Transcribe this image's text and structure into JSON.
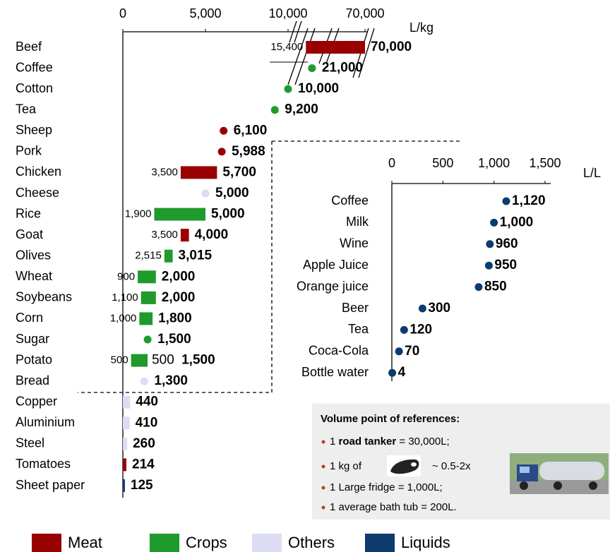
{
  "chart_data": [
    {
      "type": "range",
      "unit": "L/kg",
      "categories": [
        "Beef",
        "Coffee",
        "Cotton",
        "Tea",
        "Sheep",
        "Pork",
        "Chicken",
        "Cheese",
        "Rice",
        "Goat",
        "Olives",
        "Wheat",
        "Soybeans",
        "Corn",
        "Sugar",
        "Potato",
        "Bread",
        "Copper",
        "Aluminium",
        "Steel",
        "Tomatoes",
        "Sheet paper"
      ],
      "values": [
        70000,
        21000,
        10000,
        9200,
        6100,
        5988,
        5700,
        5000,
        5000,
        4000,
        3015,
        2000,
        2000,
        1800,
        1500,
        1500,
        1300,
        440,
        410,
        260,
        214,
        125
      ],
      "value_labels": [
        "70,000",
        "21,000",
        "10,000",
        "9,200",
        "6,100",
        "5,988",
        "5,700",
        "5,000",
        "5,000",
        "4,000",
        "3,015",
        "2,000",
        "2,000",
        "1,800",
        "1,500",
        "1,500",
        "1,300",
        "440",
        "410",
        "260",
        "214",
        "125"
      ],
      "low_values": [
        15400,
        null,
        null,
        null,
        null,
        null,
        3500,
        null,
        1900,
        3500,
        2515,
        900,
        1100,
        1000,
        null,
        500,
        null,
        null,
        null,
        null,
        null,
        null
      ],
      "low_labels": [
        "15,400",
        null,
        null,
        null,
        null,
        null,
        "3,500",
        null,
        "1,900",
        "3,500",
        "2,515",
        "900",
        "1,100",
        "1,000",
        null,
        "500",
        null,
        null,
        null,
        null,
        null,
        null
      ],
      "extra_labels": [
        null,
        null,
        null,
        null,
        null,
        null,
        null,
        null,
        null,
        null,
        null,
        null,
        null,
        null,
        null,
        "500",
        null,
        null,
        null,
        null,
        null,
        null
      ],
      "styles": [
        "bar",
        "dot",
        "dot",
        "dot",
        "dot",
        "dot",
        "bar",
        "dot",
        "bar",
        "bar",
        "bar",
        "bar",
        "bar",
        "bar",
        "dot",
        "bar",
        "dot",
        "bar",
        "bar",
        "bar",
        "bar",
        "bar"
      ],
      "colors": [
        "#990000",
        "#1f9a2c",
        "#1f9a2c",
        "#1f9a2c",
        "#990000",
        "#990000",
        "#990000",
        "#dcdcf4",
        "#1f9a2c",
        "#990000",
        "#1f9a2c",
        "#1f9a2c",
        "#1f9a2c",
        "#1f9a2c",
        "#1f9a2c",
        "#1f9a2c",
        "#dcdcf4",
        "#dcdcf4",
        "#dcdcf4",
        "#dcdcf4",
        "#990000",
        "#0d3b6e"
      ],
      "xlim": [
        0,
        70000
      ],
      "xbreak": 10000,
      "xticks": [
        0,
        {
          "value": 5000,
          "label": "5,000"
        },
        {
          "value": 10000,
          "label": "10,000"
        },
        {
          "value": 70000,
          "label": "70,000"
        }
      ]
    },
    {
      "type": "dot",
      "unit": "L/L",
      "categories": [
        "Coffee",
        "Milk",
        "Wine",
        "Apple Juice",
        "Orange juice",
        "Beer",
        "Tea",
        "Coca-Cola",
        "Bottle water"
      ],
      "values": [
        1120,
        1000,
        960,
        950,
        850,
        300,
        120,
        70,
        4
      ],
      "value_labels": [
        "1,120",
        "1,000",
        "960",
        "950",
        "850",
        "300",
        "120",
        "70",
        "4"
      ],
      "color": "#0d3b6e",
      "xlim": [
        0,
        1500
      ],
      "xticks": [
        0,
        500,
        {
          "value": 1000,
          "label": "1,000"
        },
        {
          "value": 1500,
          "label": "1,500"
        }
      ]
    }
  ],
  "legend": {
    "items": [
      {
        "name": "Meat",
        "color": "#990000"
      },
      {
        "name": "Crops",
        "color": "#1f9a2c"
      },
      {
        "name": "Others",
        "color": "#dcdcf4"
      },
      {
        "name": "Liquids",
        "color": "#0d3b6e"
      }
    ]
  },
  "notes": {
    "title": "Volume point of references:",
    "items": [
      {
        "pre": "1",
        "bold": "road tanker",
        "post": "= 30,000L;"
      },
      {
        "pre": "1 kg of",
        "post": "~ 0.5-2x"
      },
      {
        "pre": "1 Large fridge = 1,000L;"
      },
      {
        "pre": "1 average bath tub = 200L."
      }
    ]
  }
}
